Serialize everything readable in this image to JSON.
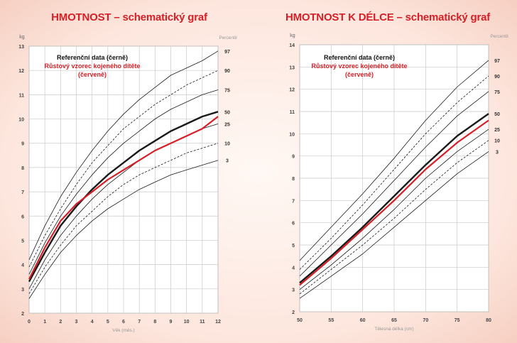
{
  "chart_data": [
    {
      "type": "line",
      "title": "HMOTNOST – schematický graf",
      "xlabel": "Věk (měs.)",
      "ylabel": "kg",
      "percentile_label": "Percentil",
      "legend_black": "Referenční data (černě)",
      "legend_red_1": "Růstový vzorec kojeného dítěte",
      "legend_red_2": "(červeně)",
      "xlim": [
        0,
        12
      ],
      "ylim": [
        2,
        13
      ],
      "x_ticks": [
        0,
        1,
        2,
        3,
        4,
        5,
        6,
        7,
        8,
        9,
        10,
        11,
        12
      ],
      "y_ticks": [
        2,
        3,
        4,
        5,
        6,
        7,
        8,
        9,
        10,
        11,
        12,
        13
      ],
      "x": [
        0,
        1,
        2,
        3,
        4,
        5,
        6,
        7,
        8,
        9,
        10,
        11,
        12
      ],
      "series": [
        {
          "name": "97",
          "style": "solid",
          "values": [
            4.2,
            5.6,
            6.8,
            7.8,
            8.7,
            9.5,
            10.2,
            10.8,
            11.3,
            11.8,
            12.1,
            12.4,
            12.8
          ]
        },
        {
          "name": "90",
          "style": "dashed",
          "values": [
            3.9,
            5.2,
            6.3,
            7.3,
            8.2,
            8.9,
            9.6,
            10.1,
            10.6,
            11.0,
            11.4,
            11.7,
            12.0
          ]
        },
        {
          "name": "75",
          "style": "solid",
          "values": [
            3.6,
            4.9,
            6.0,
            6.9,
            7.7,
            8.4,
            9.0,
            9.5,
            10.0,
            10.4,
            10.7,
            11.0,
            11.2
          ]
        },
        {
          "name": "50",
          "style": "bold",
          "values": [
            3.3,
            4.5,
            5.6,
            6.4,
            7.1,
            7.7,
            8.2,
            8.7,
            9.1,
            9.5,
            9.8,
            10.1,
            10.3
          ]
        },
        {
          "name": "25",
          "style": "solid",
          "values": [
            3.0,
            4.2,
            5.2,
            6.0,
            6.7,
            7.3,
            7.8,
            8.3,
            8.7,
            9.0,
            9.3,
            9.6,
            9.8
          ]
        },
        {
          "name": "10",
          "style": "dashed",
          "values": [
            2.8,
            3.9,
            4.8,
            5.6,
            6.2,
            6.8,
            7.3,
            7.7,
            8.0,
            8.3,
            8.6,
            8.8,
            9.0
          ]
        },
        {
          "name": "3",
          "style": "solid",
          "values": [
            2.6,
            3.6,
            4.5,
            5.2,
            5.8,
            6.3,
            6.7,
            7.1,
            7.4,
            7.7,
            7.9,
            8.1,
            8.3
          ]
        },
        {
          "name": "Růstový vzorec kojeného dítěte",
          "style": "red",
          "values": [
            3.4,
            4.7,
            5.8,
            6.5,
            7.0,
            7.5,
            7.9,
            8.3,
            8.7,
            9.0,
            9.3,
            9.6,
            10.1
          ]
        }
      ]
    },
    {
      "type": "line",
      "title": "HMOTNOST K DÉLCE – schematický graf",
      "xlabel": "Tělesná délka (cm)",
      "ylabel": "kg",
      "percentile_label": "Percentil",
      "legend_black": "Referenční data (černě)",
      "legend_red_1": "Růstový vzorec kojeného dítěte",
      "legend_red_2": "(červeně)",
      "xlim": [
        50,
        80
      ],
      "ylim": [
        2,
        14
      ],
      "x_ticks": [
        50,
        55,
        60,
        65,
        70,
        75,
        80
      ],
      "y_ticks": [
        2,
        3,
        4,
        5,
        6,
        7,
        8,
        9,
        10,
        11,
        12,
        13,
        14
      ],
      "x": [
        50,
        55,
        60,
        65,
        70,
        75,
        80
      ],
      "series": [
        {
          "name": "97",
          "style": "solid",
          "values": [
            4.3,
            5.8,
            7.3,
            8.9,
            10.6,
            12.1,
            13.3
          ]
        },
        {
          "name": "90",
          "style": "dashed",
          "values": [
            3.9,
            5.3,
            6.8,
            8.4,
            10.0,
            11.4,
            12.6
          ]
        },
        {
          "name": "75",
          "style": "solid",
          "values": [
            3.6,
            5.0,
            6.4,
            7.9,
            9.4,
            10.8,
            11.9
          ]
        },
        {
          "name": "50",
          "style": "bold",
          "values": [
            3.3,
            4.5,
            5.8,
            7.2,
            8.6,
            9.9,
            10.9
          ]
        },
        {
          "name": "25",
          "style": "solid",
          "values": [
            3.0,
            4.1,
            5.3,
            6.6,
            8.0,
            9.2,
            10.2
          ]
        },
        {
          "name": "10",
          "style": "dashed",
          "values": [
            2.8,
            3.9,
            5.0,
            6.2,
            7.5,
            8.7,
            9.7
          ]
        },
        {
          "name": "3",
          "style": "solid",
          "values": [
            2.6,
            3.6,
            4.6,
            5.8,
            7.0,
            8.2,
            9.2
          ]
        },
        {
          "name": "Růstový vzorec kojeného dítěte",
          "style": "red",
          "values": [
            3.2,
            4.4,
            5.7,
            7.0,
            8.4,
            9.6,
            10.6
          ]
        }
      ]
    }
  ]
}
